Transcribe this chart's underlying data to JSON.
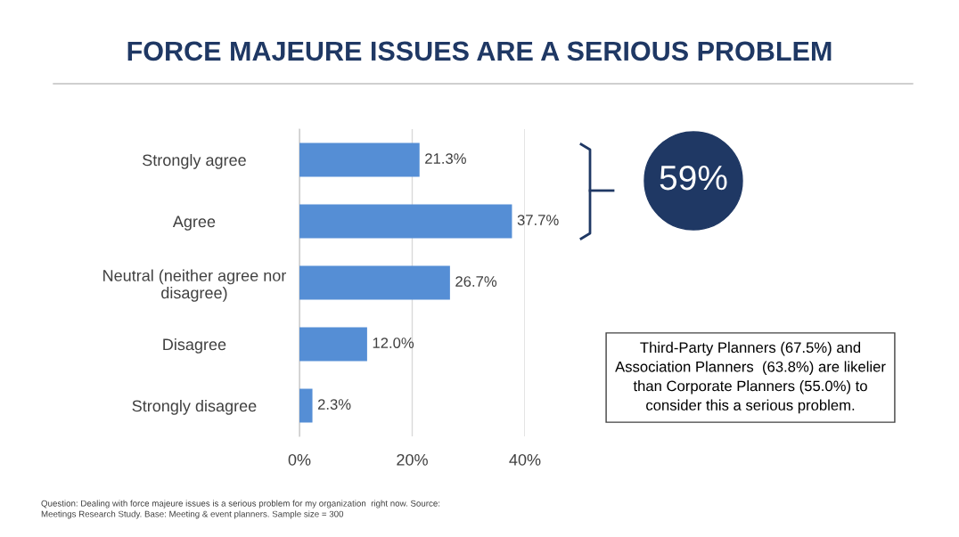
{
  "chart_data": {
    "type": "bar",
    "orientation": "horizontal",
    "title": "FORCE MAJEURE ISSUES ARE A SERIOUS PROBLEM",
    "categories": [
      "Strongly agree",
      "Agree",
      "Neutral (neither agree nor\ndisagree)",
      "Disagree",
      "Strongly disagree"
    ],
    "values": [
      21.3,
      37.7,
      26.7,
      12.0,
      2.3
    ],
    "color": "#558ed5",
    "value_labels": [
      "21.3%",
      "37.7%",
      "26.7%",
      "12.0%",
      "2.3%"
    ],
    "xlim": [
      0,
      40
    ],
    "xticks": [
      {
        "value": 0,
        "label": "0%"
      },
      {
        "value": 20,
        "label": "20%"
      },
      {
        "value": 40,
        "label": "40%"
      }
    ],
    "grid": "x",
    "annotations": [
      "59%",
      "Third-Party Planners (67.5%) and\nAssociation Planners  (63.8%) are likelier\nthan Corporate Planners (55.0%) to\nconsider this a serious problem.",
      "Question: Dealing with force majeure issues is a serious problem for my organization  right now. Source:\nMeetings Research Study. Base: Meeting & event planners. Sample size = 300"
    ]
  }
}
